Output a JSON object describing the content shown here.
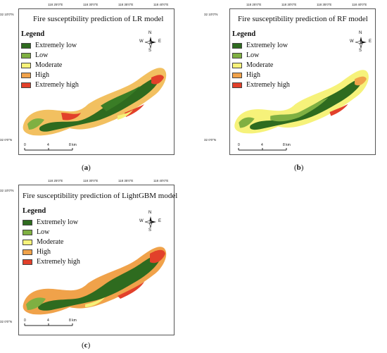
{
  "colors": {
    "extremely_low": "#2e6b1f",
    "low": "#7fb042",
    "moderate": "#f6f27a",
    "high": "#f0a24a",
    "extremely_high": "#e2402a"
  },
  "legend": {
    "title": "Legend",
    "items": [
      "Extremely low",
      "Low",
      "Moderate",
      "High",
      "Extremely high"
    ]
  },
  "lon_ticks": [
    "118 25'0\"E",
    "118 30'0\"E",
    "118 35'0\"E",
    "118 40'0\"E"
  ],
  "lat_ticks": [
    "32 10'0\"N",
    "32 0'0\"N"
  ],
  "compass": {
    "n": "N",
    "s": "S",
    "e": "E",
    "w": "W"
  },
  "scale": {
    "labels": [
      "0",
      "4",
      "8 km"
    ]
  },
  "panels": [
    {
      "title": "Fire susceptibility prediction of LR model",
      "caption": "a",
      "map_icon": "landslide-susceptibility-map"
    },
    {
      "title": "Fire susceptibility prediction of RF model",
      "caption": "b",
      "map_icon": "landslide-susceptibility-map"
    },
    {
      "title": "Fire susceptibility prediction of LightGBM model",
      "caption": "c",
      "map_icon": "landslide-susceptibility-map"
    }
  ]
}
